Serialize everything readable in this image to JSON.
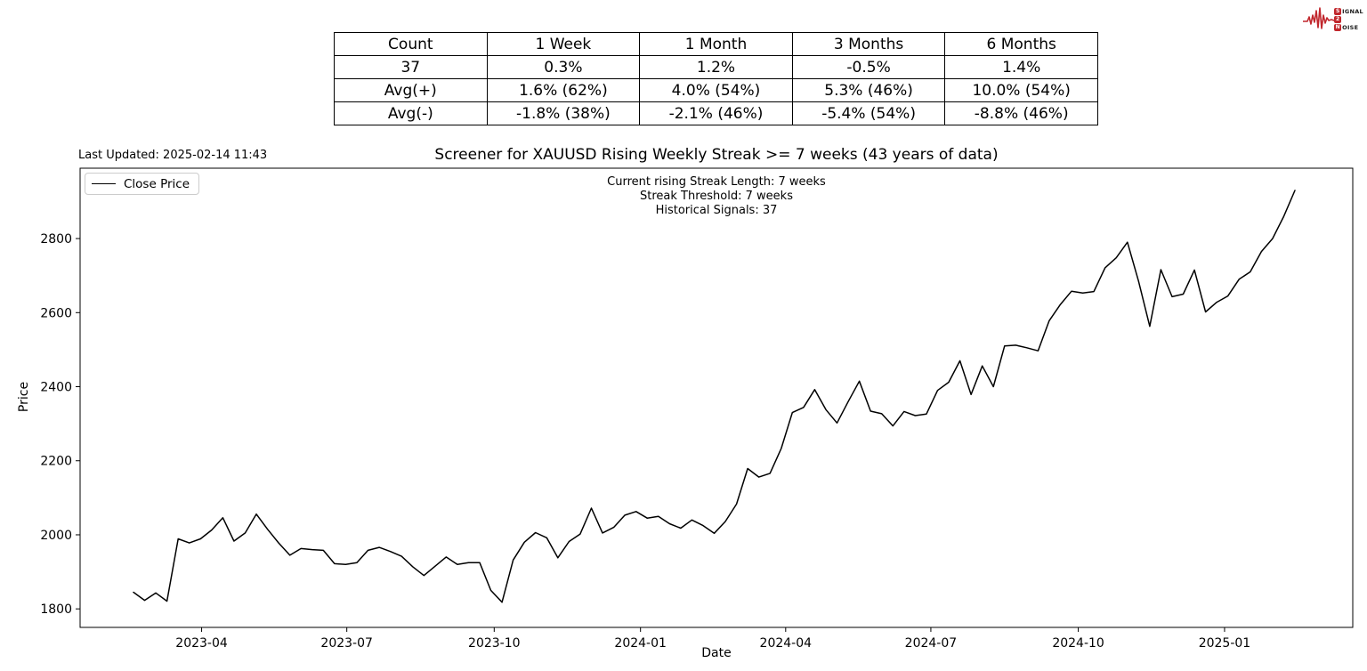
{
  "logo": {
    "accent_color": "#c1272d",
    "badge_top": "S",
    "word_top_rest": "IGNAL",
    "badge_mid": "2",
    "badge_bottom": "N",
    "word_bottom_rest": "OISE"
  },
  "table": {
    "headers": [
      "Count",
      "1 Week",
      "1 Month",
      "3 Months",
      "6 Months"
    ],
    "rows": [
      [
        "37",
        "0.3%",
        "1.2%",
        "-0.5%",
        "1.4%"
      ],
      [
        "Avg(+)",
        "1.6% (62%)",
        "4.0% (54%)",
        "5.3% (46%)",
        "10.0% (54%)"
      ],
      [
        "Avg(-)",
        "-1.8% (38%)",
        "-2.1% (46%)",
        "-5.4% (54%)",
        "-8.8% (46%)"
      ]
    ]
  },
  "chart": {
    "last_updated": "Last Updated: 2025-02-14 11:43",
    "title": "Screener for XAUUSD Rising Weekly Streak >= 7 weeks (43 years of data)",
    "annotation_lines": [
      "Current rising Streak Length: 7 weeks",
      "Streak Threshold: 7 weeks",
      "Historical Signals: 37"
    ],
    "legend_label": "Close Price",
    "xlabel": "Date",
    "ylabel": "Price"
  },
  "chart_data": {
    "type": "line",
    "title": "Screener for XAUUSD Rising Weekly Streak >= 7 weeks (43 years of data)",
    "xlabel": "Date",
    "ylabel": "Price",
    "ylim": [
      1750,
      2990
    ],
    "grid": false,
    "legend_position": "upper-left",
    "y_ticks": [
      1800,
      2000,
      2200,
      2400,
      2600,
      2800
    ],
    "x_ticks": [
      {
        "label": "2023-04",
        "week": 6.1
      },
      {
        "label": "2023-07",
        "week": 19.1
      },
      {
        "label": "2023-10",
        "week": 32.3
      },
      {
        "label": "2024-01",
        "week": 45.4
      },
      {
        "label": "2024-04",
        "week": 58.4
      },
      {
        "label": "2024-07",
        "week": 71.4
      },
      {
        "label": "2024-10",
        "week": 84.6
      },
      {
        "label": "2025-01",
        "week": 97.7
      }
    ],
    "x_unit": "weeks from 2023-02-17 to 2025-02-14",
    "series": [
      {
        "name": "Close Price",
        "color": "#000000",
        "values": [
          1845,
          1823,
          1843,
          1821,
          1989,
          1978,
          1989,
          2013,
          2046,
          1983,
          2005,
          2056,
          2015,
          1978,
          1945,
          1963,
          1960,
          1958,
          1922,
          1920,
          1925,
          1958,
          1966,
          1955,
          1942,
          1914,
          1890,
          1915,
          1940,
          1920,
          1925,
          1925,
          1850,
          1818,
          1932,
          1980,
          2006,
          1992,
          1938,
          1982,
          2002,
          2072,
          2005,
          2020,
          2053,
          2063,
          2045,
          2050,
          2030,
          2018,
          2040,
          2025,
          2004,
          2036,
          2083,
          2179,
          2156,
          2166,
          2233,
          2330,
          2344,
          2392,
          2338,
          2302,
          2360,
          2415,
          2334,
          2327,
          2294,
          2333,
          2322,
          2326,
          2390,
          2412,
          2470,
          2379,
          2456,
          2400,
          2510,
          2512,
          2505,
          2497,
          2578,
          2622,
          2658,
          2653,
          2657,
          2721,
          2748,
          2790,
          2685,
          2563,
          2716,
          2643,
          2650,
          2715,
          2602,
          2628,
          2645,
          2690,
          2710,
          2765,
          2800,
          2860,
          2930
        ]
      }
    ]
  }
}
